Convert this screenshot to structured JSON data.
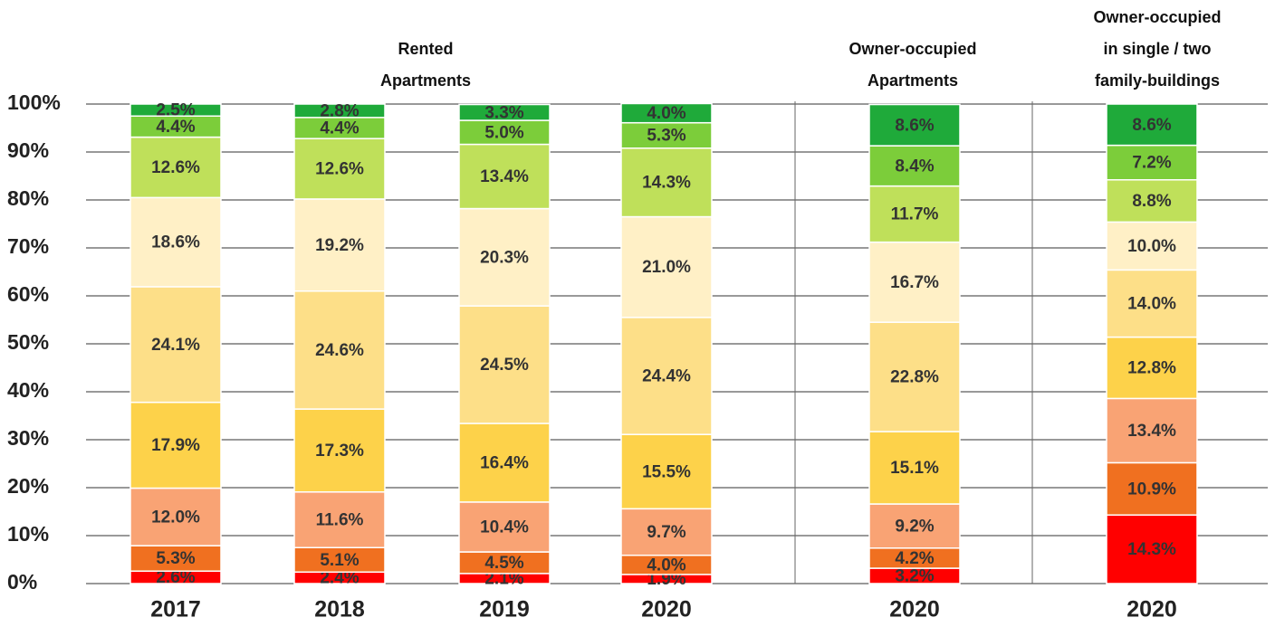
{
  "chart_data": {
    "type": "stacked_bar",
    "groups": [
      {
        "lines": [
          "Rented",
          "Apartments"
        ]
      },
      {
        "lines": [
          "Owner-occupied",
          "Apartments"
        ]
      },
      {
        "lines": [
          "Owner-occupied",
          "in single / two",
          "family-buildings"
        ]
      }
    ],
    "categories": [
      "2017",
      "2018",
      "2019",
      "2020",
      "2020",
      "2020"
    ],
    "series": [
      {
        "color": "#ff0000",
        "values": [
          2.6,
          2.4,
          2.1,
          1.9,
          3.2,
          14.3
        ],
        "value_labels": [
          "2.6%",
          "2.4%",
          "2.1%",
          "1.9%",
          "3.2%",
          "14.3%"
        ]
      },
      {
        "color": "#f07020",
        "values": [
          5.3,
          5.1,
          4.5,
          4.0,
          4.2,
          10.9
        ],
        "value_labels": [
          "5.3%",
          "5.1%",
          "4.5%",
          "4.0%",
          "4.2%",
          "10.9%"
        ]
      },
      {
        "color": "#f9a374",
        "values": [
          12.0,
          11.6,
          10.4,
          9.7,
          9.2,
          13.4
        ],
        "value_labels": [
          "12.0%",
          "11.6%",
          "10.4%",
          "9.7%",
          "9.2%",
          "13.4%"
        ]
      },
      {
        "color": "#fdd24a",
        "values": [
          17.9,
          17.3,
          16.4,
          15.5,
          15.1,
          12.8
        ],
        "value_labels": [
          "17.9%",
          "17.3%",
          "16.4%",
          "15.5%",
          "15.1%",
          "12.8%"
        ]
      },
      {
        "color": "#fddf88",
        "values": [
          24.1,
          24.6,
          24.5,
          24.4,
          22.8,
          14.0
        ],
        "value_labels": [
          "24.1%",
          "24.6%",
          "24.5%",
          "24.4%",
          "22.8%",
          "14.0%"
        ]
      },
      {
        "color": "#fff0c6",
        "values": [
          18.6,
          19.2,
          20.3,
          21.0,
          16.7,
          10.0
        ],
        "value_labels": [
          "18.6%",
          "19.2%",
          "20.3%",
          "21.0%",
          "16.7%",
          "10.0%"
        ]
      },
      {
        "color": "#bfe05a",
        "values": [
          12.6,
          12.6,
          13.4,
          14.3,
          11.7,
          8.8
        ],
        "value_labels": [
          "12.6%",
          "12.6%",
          "13.4%",
          "14.3%",
          "11.7%",
          "8.8%"
        ]
      },
      {
        "color": "#7ccd3a",
        "values": [
          4.4,
          4.4,
          5.0,
          5.3,
          8.4,
          7.2
        ],
        "value_labels": [
          "4.4%",
          "4.4%",
          "5.0%",
          "5.3%",
          "8.4%",
          "7.2%"
        ]
      },
      {
        "color": "#1faa3a",
        "values": [
          2.5,
          2.8,
          3.3,
          4.0,
          8.6,
          8.6
        ],
        "value_labels": [
          "2.5%",
          "2.8%",
          "3.3%",
          "4.0%",
          "8.6%",
          "8.6%"
        ]
      }
    ],
    "ylim": [
      0,
      100
    ],
    "yticks": [
      {
        "value": 0,
        "label": "0%"
      },
      {
        "value": 10,
        "label": "10%"
      },
      {
        "value": 20,
        "label": "20%"
      },
      {
        "value": 30,
        "label": "30%"
      },
      {
        "value": 40,
        "label": "40%"
      },
      {
        "value": 50,
        "label": "50%"
      },
      {
        "value": 60,
        "label": "60%"
      },
      {
        "value": 70,
        "label": "70%"
      },
      {
        "value": 80,
        "label": "80%"
      },
      {
        "value": 90,
        "label": "90%"
      },
      {
        "value": 100,
        "label": "100%"
      }
    ],
    "grid": true
  }
}
